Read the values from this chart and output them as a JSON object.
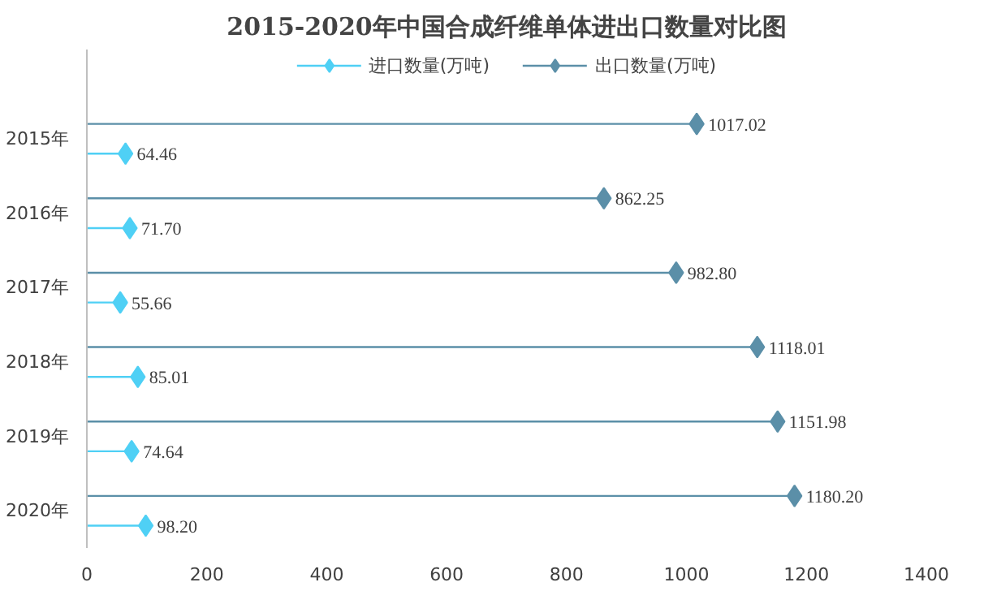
{
  "chart_data": {
    "type": "lollipop",
    "orientation": "horizontal",
    "title": "2015-2020年中国合成纤维单体进出口数量对比图",
    "categories": [
      "2015年",
      "2016年",
      "2017年",
      "2018年",
      "2019年",
      "2020年"
    ],
    "series": [
      {
        "name": "进口数量(万吨)",
        "color": "#4fd0f5",
        "values": [
          64.46,
          71.7,
          55.66,
          85.01,
          74.64,
          98.2
        ]
      },
      {
        "name": "出口数量(万吨)",
        "color": "#5b8fa8",
        "values": [
          1017.02,
          862.25,
          982.8,
          1118.01,
          1151.98,
          1180.2
        ]
      }
    ],
    "xlim": [
      0,
      1400
    ],
    "xticks": [
      0,
      200,
      400,
      600,
      800,
      1000,
      1200,
      1400
    ],
    "value_labels": [
      [
        "64.46",
        "71.70",
        "55.66",
        "85.01",
        "74.64",
        "98.20"
      ],
      [
        "1017.02",
        "862.25",
        "982.80",
        "1118.01",
        "1151.98",
        "1180.20"
      ]
    ],
    "marker": "diamond",
    "grid": false,
    "legend": "top"
  }
}
